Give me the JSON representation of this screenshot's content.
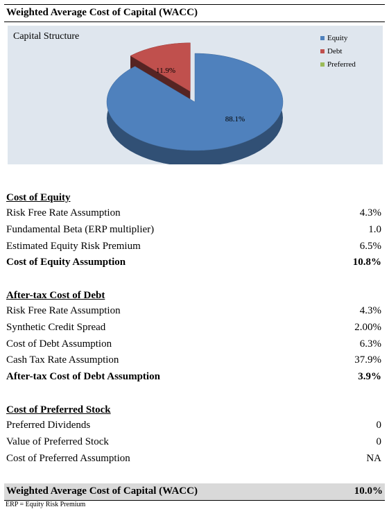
{
  "title": "Weighted Average Cost of Capital (WACC)",
  "chart_data": {
    "type": "pie",
    "title": "Capital Structure",
    "categories": [
      "Equity",
      "Debt",
      "Preferred"
    ],
    "values": [
      88.1,
      11.9,
      0.0
    ],
    "labels": [
      "88.1%",
      "11.9%",
      ""
    ],
    "colors": [
      "#4f81bd",
      "#c0504d",
      "#9bbb59"
    ],
    "legend_position": "top-right"
  },
  "sections": [
    {
      "heading": "Cost of Equity",
      "rows": [
        {
          "label": "Risk Free Rate Assumption",
          "value": "4.3%",
          "bold": false
        },
        {
          "label": "Fundamental Beta (ERP multiplier)",
          "value": "1.0",
          "bold": false
        },
        {
          "label": "Estimated Equity Risk Premium",
          "value": "6.5%",
          "bold": false
        },
        {
          "label": "Cost of Equity Assumption",
          "value": "10.8%",
          "bold": true
        }
      ]
    },
    {
      "heading": "After-tax Cost of Debt",
      "rows": [
        {
          "label": "Risk Free Rate Assumption",
          "value": "4.3%",
          "bold": false
        },
        {
          "label": "Synthetic Credit Spread",
          "value": "2.00%",
          "bold": false
        },
        {
          "label": "Cost of Debt Assumption",
          "value": "6.3%",
          "bold": false
        },
        {
          "label": "Cash Tax Rate Assumption",
          "value": "37.9%",
          "bold": false
        },
        {
          "label": "After-tax Cost of Debt Assumption",
          "value": "3.9%",
          "bold": true
        }
      ]
    },
    {
      "heading": "Cost of Preferred Stock",
      "rows": [
        {
          "label": "Preferred Dividends",
          "value": "0",
          "bold": false
        },
        {
          "label": "Value of Preferred Stock",
          "value": "0",
          "bold": false
        },
        {
          "label": "Cost of Preferred Assumption",
          "value": "NA",
          "bold": false
        }
      ]
    }
  ],
  "wacc": {
    "label": "Weighted Average Cost of Capital (WACC)",
    "value": "10.0%"
  },
  "footnote": "ERP = Equity Risk Premium"
}
